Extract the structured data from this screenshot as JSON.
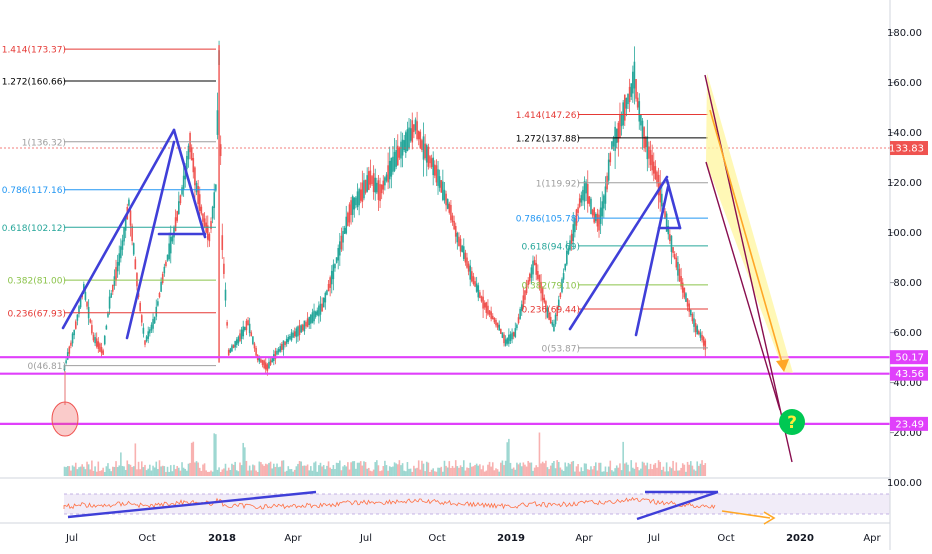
{
  "chart_data": {
    "type": "candlestick",
    "title": "",
    "xlabel": "",
    "ylabel": "",
    "ylim": [
      0,
      190
    ],
    "x_tick_labels": [
      "Jul",
      "Oct",
      "2018",
      "Apr",
      "Jul",
      "Oct",
      "2019",
      "Apr",
      "Jul",
      "Oct",
      "2020",
      "Apr"
    ],
    "y_tick_labels": [
      "20.00",
      "40.00",
      "60.00",
      "80.00",
      "100.00",
      "120.00",
      "140.00",
      "160.00",
      "180.00"
    ],
    "y_tick_values": [
      20,
      40,
      60,
      80,
      100,
      120,
      140,
      160,
      180
    ],
    "rsi_tick_label": "100.00",
    "current_price": {
      "value": 133.83,
      "label": "133.83",
      "color": "#ef5350"
    },
    "fib_levels_2017": [
      {
        "label": "1.414(173.37)",
        "value": 173.37,
        "color": "#e53935"
      },
      {
        "label": "1.272(160.66)",
        "value": 160.66,
        "color": "#000000"
      },
      {
        "label": "1(136.32)",
        "value": 136.32,
        "color": "#9e9e9e"
      },
      {
        "label": "0.786(117.16)",
        "value": 117.16,
        "color": "#2196f3"
      },
      {
        "label": "0.618(102.12)",
        "value": 102.12,
        "color": "#26a69a"
      },
      {
        "label": "0.382(81.00)",
        "value": 81.0,
        "color": "#8bc34a"
      },
      {
        "label": "0.236(67.93)",
        "value": 67.93,
        "color": "#e53935"
      },
      {
        "label": "0(46.81)",
        "value": 46.81,
        "color": "#9e9e9e"
      }
    ],
    "fib_levels_2019": [
      {
        "label": "1.414(147.26)",
        "value": 147.26,
        "color": "#e53935"
      },
      {
        "label": "1.272(137.88)",
        "value": 137.88,
        "color": "#000000"
      },
      {
        "label": "1(119.92)",
        "value": 119.92,
        "color": "#9e9e9e"
      },
      {
        "label": "0.786(105.78)",
        "value": 105.78,
        "color": "#2196f3"
      },
      {
        "label": "0.618(94.69)",
        "value": 94.69,
        "color": "#26a69a"
      },
      {
        "label": "0.382(79.10)",
        "value": 79.1,
        "color": "#8bc34a"
      },
      {
        "label": "0.236(69.44)",
        "value": 69.44,
        "color": "#e53935"
      },
      {
        "label": "0(53.87)",
        "value": 53.87,
        "color": "#9e9e9e"
      }
    ],
    "support_levels": [
      {
        "label": "50.17",
        "value": 50.17,
        "color": "#e040fb"
      },
      {
        "label": "43.56",
        "value": 43.56,
        "color": "#e040fb"
      },
      {
        "label": "23.49",
        "value": 23.49,
        "color": "#e040fb"
      }
    ],
    "price_path": [
      [
        0,
        46
      ],
      [
        3,
        60
      ],
      [
        6,
        78
      ],
      [
        9,
        58
      ],
      [
        12,
        52
      ],
      [
        14,
        72
      ],
      [
        18,
        95
      ],
      [
        20,
        112
      ],
      [
        23,
        75
      ],
      [
        25,
        56
      ],
      [
        28,
        65
      ],
      [
        31,
        85
      ],
      [
        34,
        100
      ],
      [
        37,
        120
      ],
      [
        39,
        136
      ],
      [
        41,
        118
      ],
      [
        43,
        106
      ],
      [
        45,
        98
      ],
      [
        47,
        118
      ],
      [
        48,
        170
      ],
      [
        49,
        96
      ],
      [
        50,
        75
      ],
      [
        51,
        52
      ],
      [
        54,
        57
      ],
      [
        57,
        64
      ],
      [
        60,
        50
      ],
      [
        63,
        46
      ],
      [
        66,
        52
      ],
      [
        70,
        58
      ],
      [
        74,
        62
      ],
      [
        77,
        66
      ],
      [
        80,
        70
      ],
      [
        83,
        82
      ],
      [
        86,
        96
      ],
      [
        89,
        110
      ],
      [
        92,
        115
      ],
      [
        95,
        122
      ],
      [
        98,
        116
      ],
      [
        101,
        125
      ],
      [
        104,
        132
      ],
      [
        107,
        138
      ],
      [
        109,
        143
      ],
      [
        111,
        135
      ],
      [
        114,
        128
      ],
      [
        116,
        122
      ],
      [
        118,
        115
      ],
      [
        120,
        108
      ],
      [
        122,
        98
      ],
      [
        124,
        92
      ],
      [
        126,
        84
      ],
      [
        128,
        78
      ],
      [
        130,
        72
      ],
      [
        132,
        68
      ],
      [
        135,
        62
      ],
      [
        137,
        56
      ],
      [
        140,
        60
      ],
      [
        142,
        70
      ],
      [
        144,
        80
      ],
      [
        146,
        88
      ],
      [
        148,
        78
      ],
      [
        150,
        68
      ],
      [
        152,
        62
      ],
      [
        154,
        75
      ],
      [
        156,
        90
      ],
      [
        158,
        100
      ],
      [
        160,
        112
      ],
      [
        162,
        118
      ],
      [
        164,
        108
      ],
      [
        166,
        104
      ],
      [
        168,
        115
      ],
      [
        170,
        135
      ],
      [
        172,
        140
      ],
      [
        174,
        150
      ],
      [
        176,
        157
      ],
      [
        177,
        163
      ],
      [
        178,
        152
      ],
      [
        180,
        138
      ],
      [
        182,
        130
      ],
      [
        184,
        122
      ],
      [
        186,
        110
      ],
      [
        188,
        98
      ],
      [
        190,
        88
      ],
      [
        192,
        78
      ],
      [
        194,
        70
      ],
      [
        196,
        62
      ],
      [
        198,
        58
      ],
      [
        199,
        55
      ]
    ],
    "annotation_question": "?",
    "legend": "none",
    "grid": false,
    "colors": {
      "candle_up": "#26a69a",
      "candle_down": "#ef5350",
      "trendline": "#3f3fd8",
      "projection_fill": "#fff59d",
      "projection_border": "#880e4f",
      "arrow": "#ffa726",
      "rsi_line": "#ff7043",
      "rsi_band": "#ede7f6",
      "question_badge": "#00c853"
    }
  }
}
